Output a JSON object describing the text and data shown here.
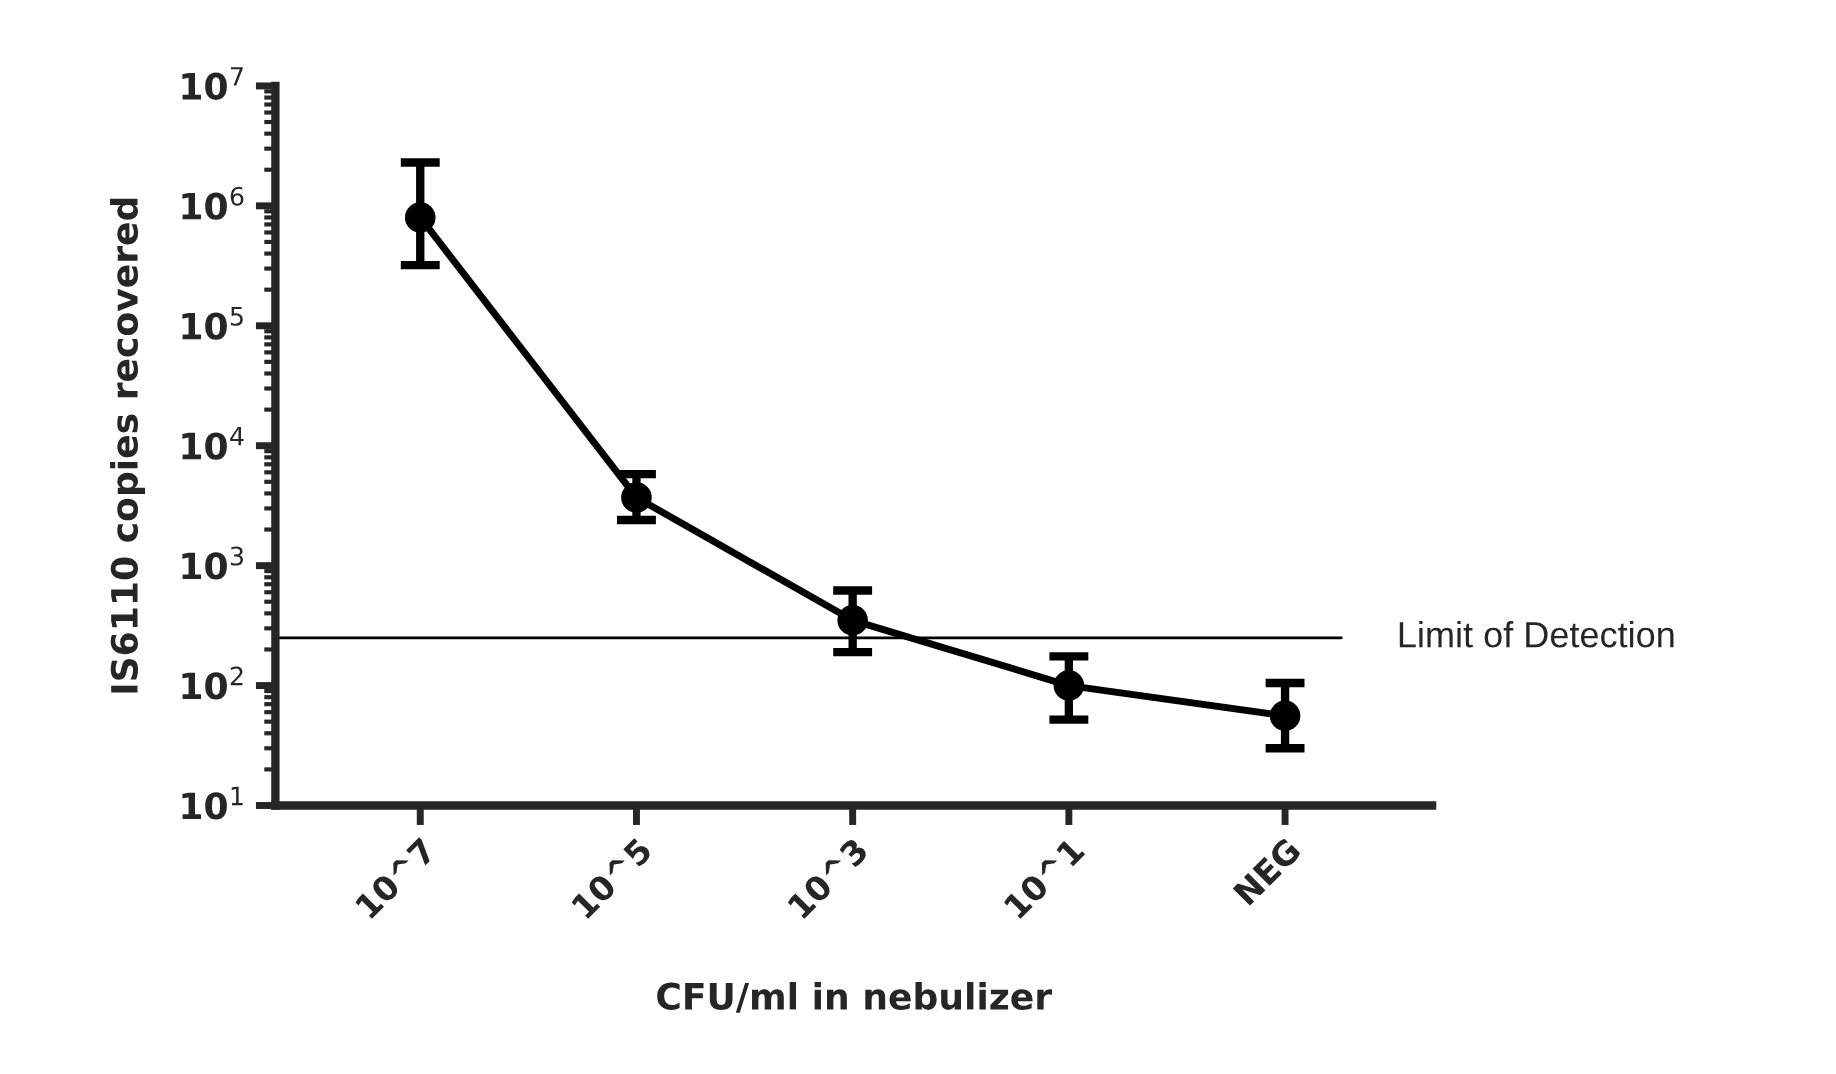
{
  "chart_data": {
    "type": "line",
    "xlabel": "CFU/ml in nebulizer",
    "ylabel": "IS6110 copies recovered",
    "log": "y",
    "categories": [
      "10^7",
      "10^5",
      "10^3",
      "10^1",
      "NEG"
    ],
    "ylim": [
      10,
      10000000
    ],
    "yticks": [
      {
        "value": 10,
        "label": "10$^{1}$"
      },
      {
        "value": 100,
        "label": "10$^{2}$"
      },
      {
        "value": 1000,
        "label": "10$^{3}$"
      },
      {
        "value": 10000,
        "label": "10$^{4}$"
      },
      {
        "value": 100000,
        "label": "10$^{5}$"
      },
      {
        "value": 1000000,
        "label": "10$^{6}$"
      },
      {
        "value": 10000000,
        "label": "10$^{7}$"
      }
    ],
    "grid": false,
    "legend": false,
    "marker": "circle",
    "line_style": "solid",
    "ref_lines": [
      {
        "axis": "y",
        "value": 250,
        "label": "Limit of Detection",
        "color": "#000000",
        "line_style": "solid"
      }
    ],
    "series": [
      {
        "color": "#000000",
        "values": [
          800000,
          3700,
          350,
          100,
          56
        ],
        "errors": [
          [
            320000,
            2300000
          ],
          [
            2400,
            5800
          ],
          [
            190,
            620
          ],
          [
            52,
            175
          ],
          [
            30,
            105
          ]
        ]
      }
    ]
  }
}
